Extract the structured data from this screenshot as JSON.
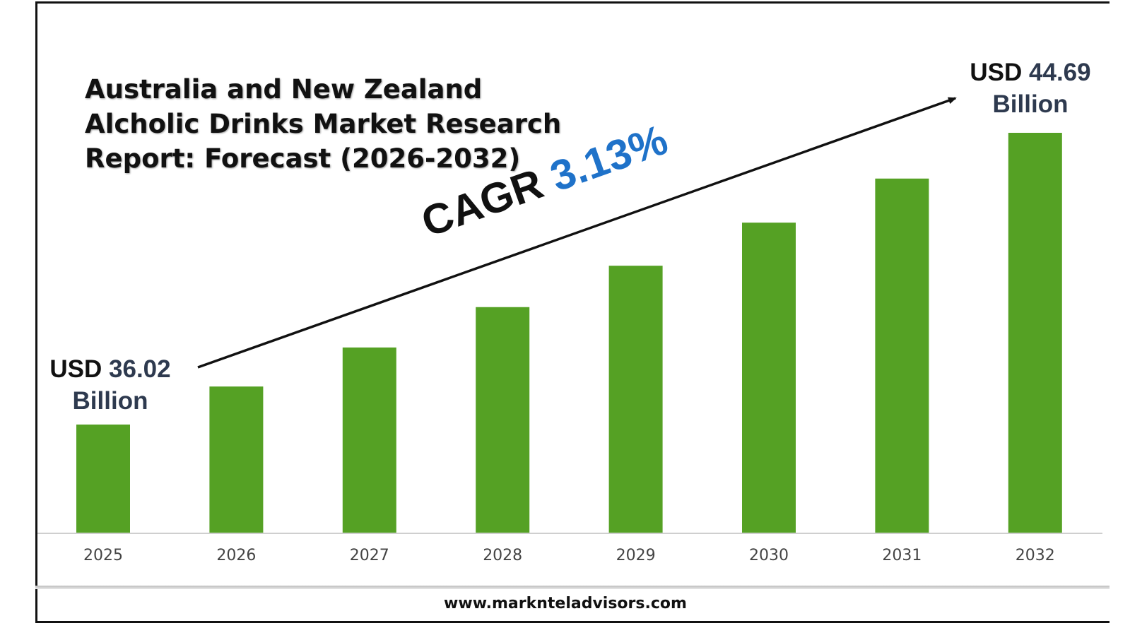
{
  "title": "Australia and New Zealand Alcholic Drinks Market Research Report: Forecast (2026-2032)",
  "chart_data": {
    "type": "bar",
    "categories": [
      "2025",
      "2026",
      "2027",
      "2028",
      "2029",
      "2030",
      "2031",
      "2032"
    ],
    "values": [
      36.02,
      37.15,
      38.31,
      39.51,
      40.74,
      42.02,
      43.33,
      44.69
    ],
    "unit": "USD Billion",
    "bar_color": "#55a124",
    "grid": false,
    "legend": "none"
  },
  "callouts": {
    "start": {
      "prefix": "USD",
      "value": "36.02",
      "unit": "Billion"
    },
    "end": {
      "prefix": "USD",
      "value": "44.69",
      "unit": "Billion"
    }
  },
  "cagr": {
    "label": "CAGR",
    "value": "3.13%"
  },
  "footer": {
    "website": "www.marknteladvisors.com"
  },
  "colors": {
    "bar": "#55a124",
    "cagr_value": "#1f72c9",
    "callout_value": "#2e3a4f"
  }
}
